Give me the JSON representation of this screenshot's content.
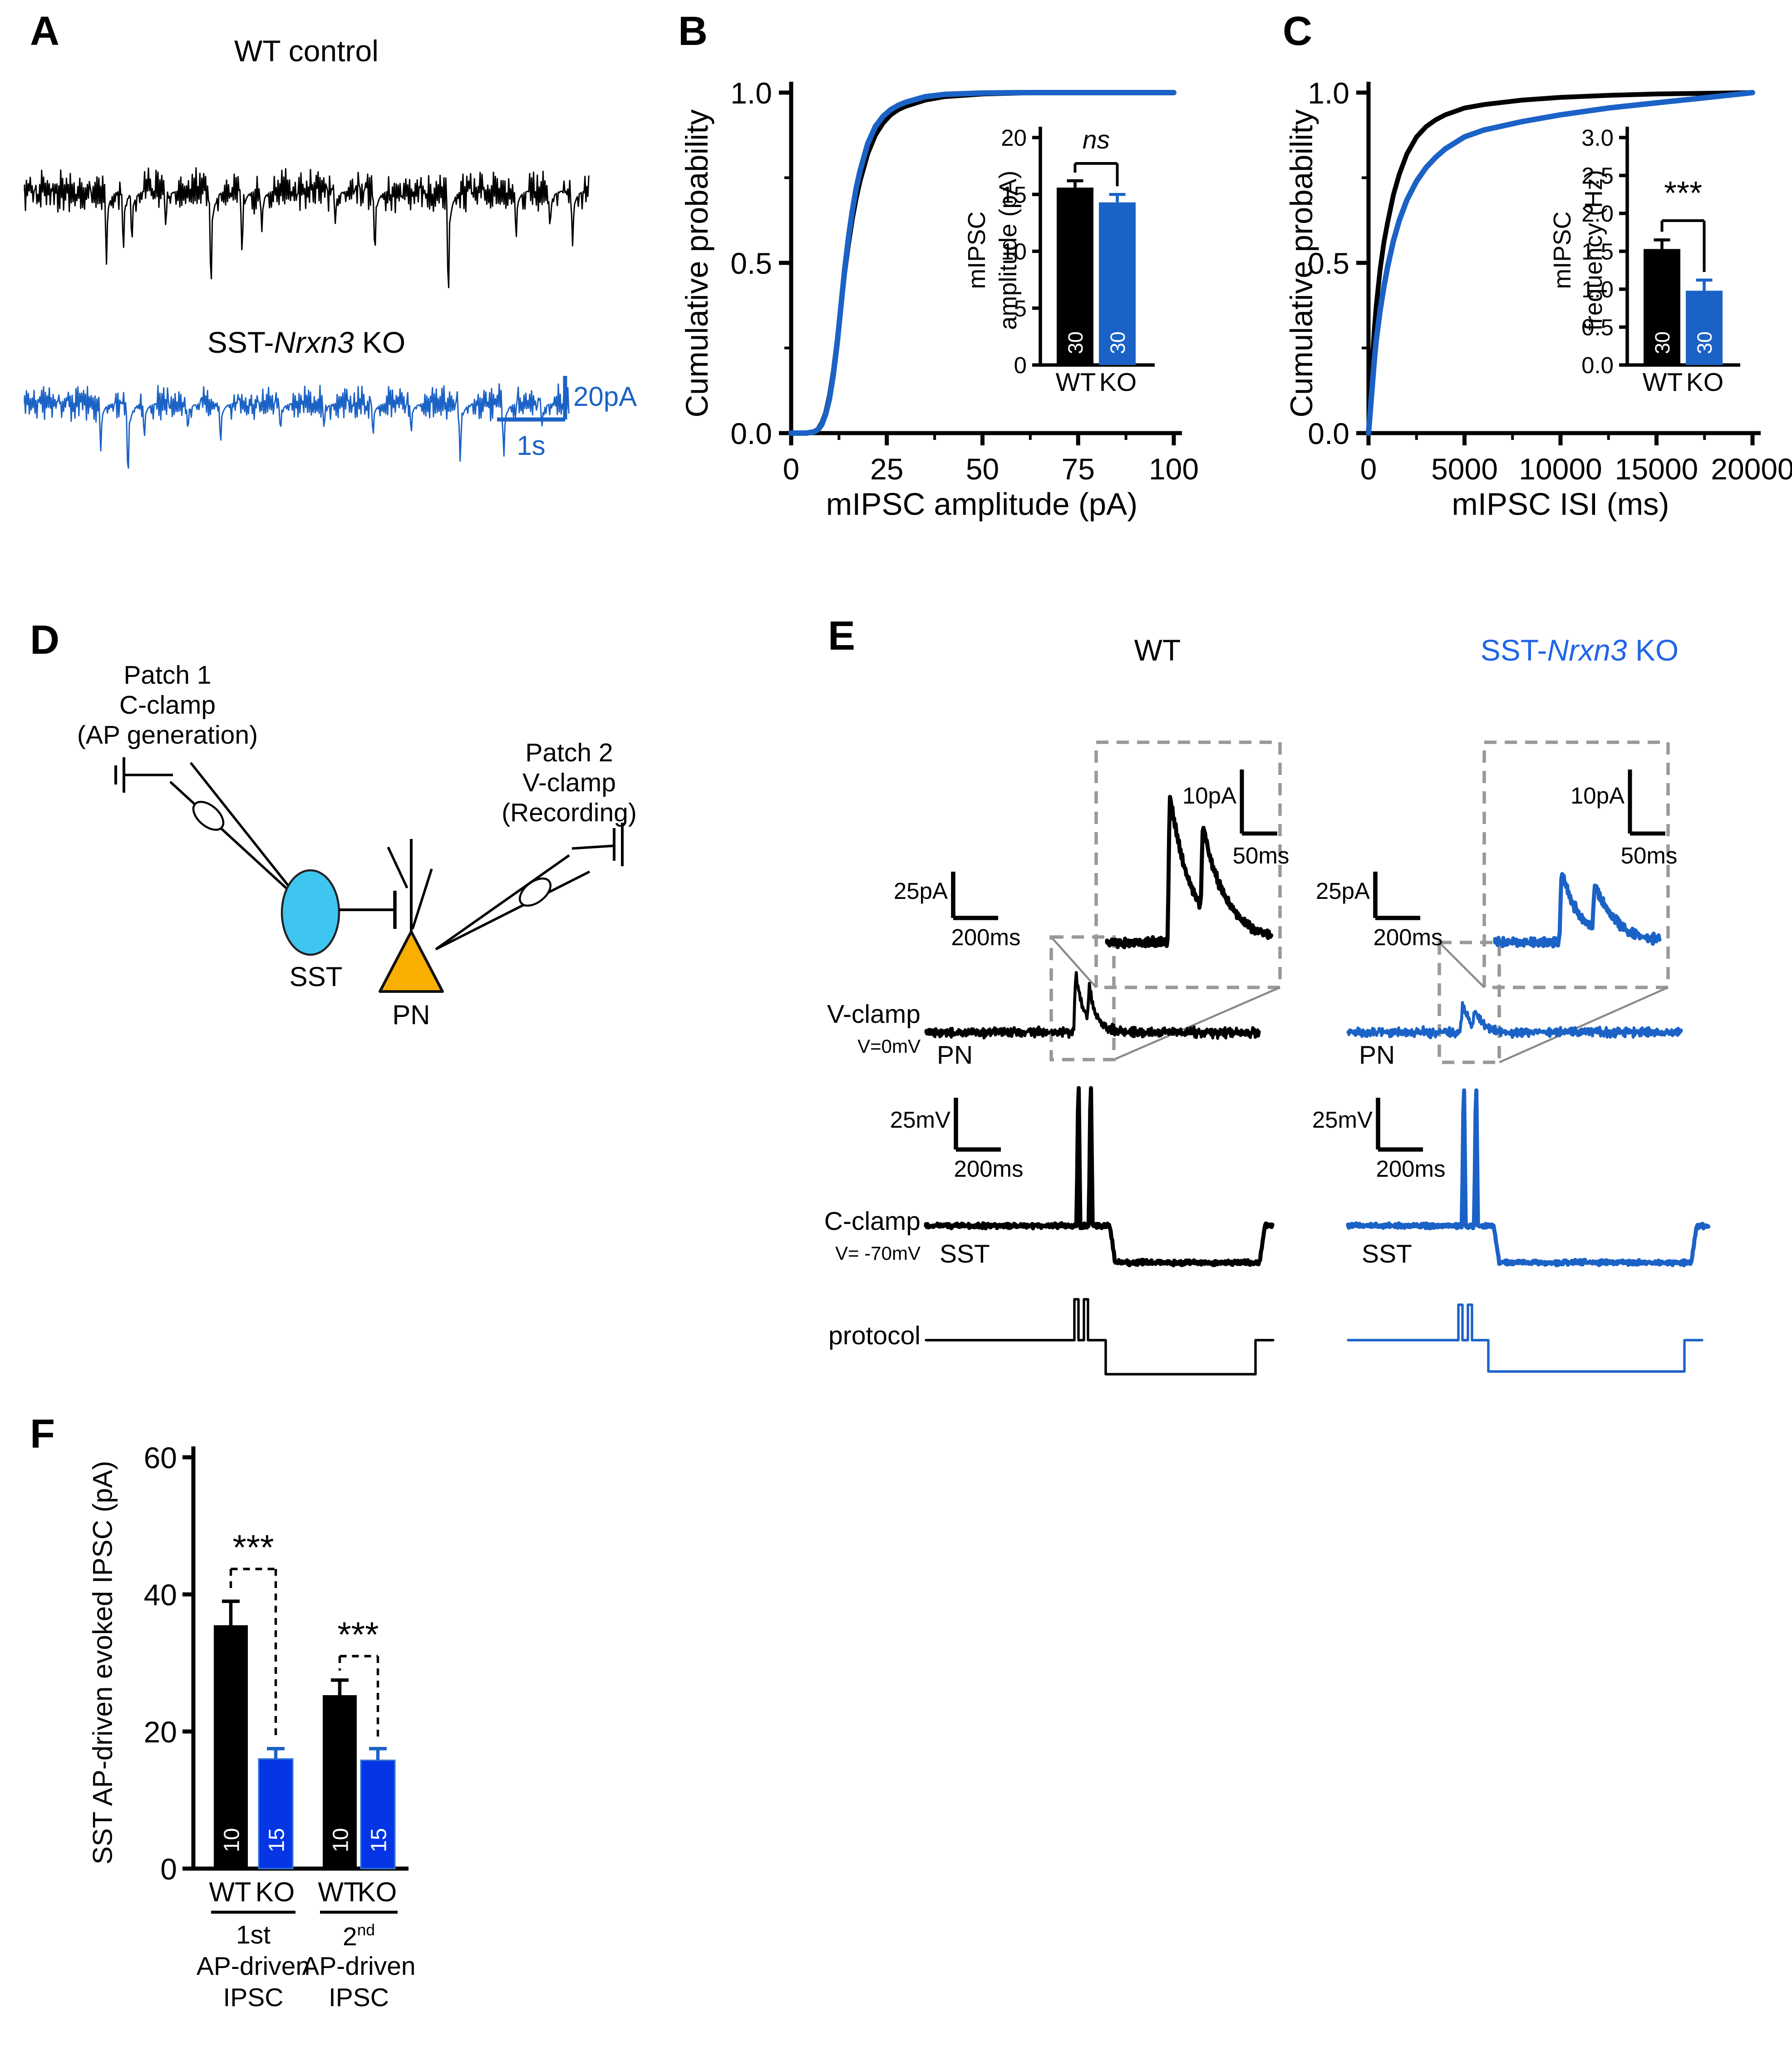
{
  "colors": {
    "black": "#000000",
    "trace_blue": "#1B62C6",
    "bar_blue": "#0535E5",
    "title_blue": "#2064E8",
    "sst_fill": "#3EC6F0",
    "pn_fill": "#F9AF00",
    "gray": "#8A8A8A",
    "dash_gray": "#999999",
    "white": "#FFFFFF"
  },
  "panelA": {
    "label": "A",
    "wt_title": "WT control",
    "ko_title": {
      "pre": "SST-",
      "italic": "Nrxn3",
      "post": " KO"
    },
    "scale_v": "20pA",
    "scale_h": "1s"
  },
  "panelB": {
    "label": "B",
    "ylabel": "Cumulative probability",
    "xlabel": "mIPSC amplitude (pA)",
    "inset": {
      "ylabel_line1": "mIPSC",
      "ylabel_line2": "amplitude (pA)"
    }
  },
  "panelC": {
    "label": "C",
    "ylabel": "Cumulative probability",
    "xlabel": "mIPSC ISI (ms)",
    "inset": {
      "ylabel_line1": "mIPSC",
      "ylabel_line2": "frequency (Hz)"
    }
  },
  "panelD": {
    "label": "D",
    "patch1_line1": "Patch 1",
    "patch1_line2": "C-clamp",
    "patch1_line3": "(AP generation)",
    "patch2_line1": "Patch 2",
    "patch2_line2": "V-clamp",
    "patch2_line3": "(Recording)",
    "sst": "SST",
    "pn": "PN"
  },
  "panelE": {
    "label": "E",
    "wt_title": "WT",
    "ko_title": {
      "pre": "SST-",
      "italic": "Nrxn3",
      "post": " KO"
    },
    "inset_scale_v": "10pA",
    "inset_scale_h": "50ms",
    "pa_scale_v": "25pA",
    "pa_scale_h": "200ms",
    "mv_scale_v": "25mV",
    "mv_scale_h": "200ms",
    "vclamp_label": "V-clamp",
    "vclamp_sub": "V=0mV",
    "pn_label": "PN",
    "cclamp_label": "C-clamp",
    "cclamp_sub": "V= -70mV",
    "sst_label": "SST",
    "protocol_label": "protocol"
  },
  "panelF": {
    "label": "F",
    "ylabel": "SST AP-driven evoked IPSC (pA)",
    "group1_line1": "1st",
    "group1_line2": "AP-driven",
    "group1_line3": "IPSC",
    "group2_num": "2",
    "group2_sup": "nd",
    "group2_line2": "AP-driven",
    "group2_line3": "IPSC"
  },
  "chart_data": [
    {
      "id": "B_cumulative",
      "type": "line",
      "title": "",
      "xlabel": "mIPSC amplitude (pA)",
      "ylabel": "Cumulative probability",
      "xlim": [
        0,
        100
      ],
      "ylim": [
        0,
        1
      ],
      "xticks": [
        0,
        25,
        50,
        75,
        100
      ],
      "xminor": [
        12.5,
        37.5,
        62.5,
        87.5
      ],
      "yticks": [
        0,
        0.5,
        1
      ],
      "yminor": [
        0.25,
        0.75
      ],
      "series": [
        {
          "name": "WT",
          "color": "black",
          "x": [
            0,
            4,
            6,
            7,
            8,
            9,
            10,
            11,
            12,
            13,
            14,
            15,
            16,
            17,
            18,
            20,
            22,
            24,
            26,
            28,
            30,
            35,
            40,
            50,
            60,
            80,
            100
          ],
          "y": [
            0,
            0,
            0.005,
            0.012,
            0.03,
            0.06,
            0.11,
            0.18,
            0.27,
            0.37,
            0.47,
            0.555,
            0.63,
            0.69,
            0.74,
            0.82,
            0.875,
            0.91,
            0.935,
            0.95,
            0.96,
            0.978,
            0.988,
            0.996,
            0.999,
            1,
            1
          ]
        },
        {
          "name": "SST-Nrxn3 KO",
          "color": "trace_blue",
          "x": [
            0,
            4,
            6,
            7,
            8,
            9,
            10,
            11,
            12,
            13,
            14,
            15,
            16,
            17,
            18,
            20,
            22,
            24,
            26,
            28,
            30,
            35,
            40,
            50,
            60,
            80,
            100
          ],
          "y": [
            0,
            0,
            0.004,
            0.01,
            0.025,
            0.055,
            0.1,
            0.17,
            0.26,
            0.37,
            0.48,
            0.575,
            0.655,
            0.72,
            0.77,
            0.85,
            0.9,
            0.93,
            0.95,
            0.963,
            0.972,
            0.988,
            0.995,
            0.999,
            1,
            1,
            1
          ]
        }
      ]
    },
    {
      "id": "B_inset",
      "type": "bar",
      "ylabel": "mIPSC amplitude (pA)",
      "ylim": [
        0,
        20
      ],
      "yticks": [
        0,
        5,
        10,
        15,
        20
      ],
      "categories": [
        "WT",
        "KO"
      ],
      "values": [
        15.6,
        14.3
      ],
      "errors": [
        0.6,
        0.7
      ],
      "n": [
        "30",
        "30"
      ],
      "sig": "ns"
    },
    {
      "id": "C_cumulative",
      "type": "line",
      "title": "",
      "xlabel": "mIPSC ISI (ms)",
      "ylabel": "Cumulative probability",
      "xlim": [
        0,
        20000
      ],
      "ylim": [
        0,
        1
      ],
      "xticks": [
        0,
        5000,
        10000,
        15000,
        20000
      ],
      "xminor": [
        2500,
        7500,
        12500,
        17500
      ],
      "yticks": [
        0,
        0.5,
        1
      ],
      "yminor": [
        0.25,
        0.75
      ],
      "series": [
        {
          "name": "WT",
          "color": "black",
          "x": [
            0,
            100,
            200,
            300,
            400,
            600,
            800,
            1000,
            1300,
            1600,
            2000,
            2500,
            3000,
            3500,
            4000,
            5000,
            6000,
            8000,
            10000,
            12500,
            15000,
            17500,
            20000
          ],
          "y": [
            0,
            0.1,
            0.21,
            0.3,
            0.37,
            0.48,
            0.56,
            0.62,
            0.7,
            0.76,
            0.82,
            0.87,
            0.9,
            0.92,
            0.935,
            0.955,
            0.965,
            0.978,
            0.986,
            0.992,
            0.996,
            0.998,
            1
          ]
        },
        {
          "name": "SST-Nrxn3 KO",
          "color": "trace_blue",
          "x": [
            0,
            100,
            200,
            300,
            400,
            600,
            800,
            1000,
            1300,
            1600,
            2000,
            2500,
            3000,
            3500,
            4000,
            5000,
            6000,
            8000,
            10000,
            12500,
            15000,
            17500,
            20000
          ],
          "y": [
            0,
            0.07,
            0.14,
            0.21,
            0.27,
            0.36,
            0.43,
            0.49,
            0.565,
            0.625,
            0.685,
            0.74,
            0.78,
            0.81,
            0.835,
            0.87,
            0.89,
            0.915,
            0.935,
            0.955,
            0.97,
            0.985,
            1
          ]
        }
      ]
    },
    {
      "id": "C_inset",
      "type": "bar",
      "ylabel": "mIPSC frequency (Hz)",
      "ylim": [
        0,
        3
      ],
      "yticks": [
        0,
        0.5,
        1,
        1.5,
        2,
        2.5,
        3
      ],
      "categories": [
        "WT",
        "KO"
      ],
      "values": [
        1.53,
        0.98
      ],
      "errors": [
        0.12,
        0.14
      ],
      "n": [
        "30",
        "30"
      ],
      "sig": "***"
    },
    {
      "id": "F_bars",
      "type": "bar",
      "ylabel": "SST AP-driven evoked IPSC (pA)",
      "ylim": [
        0,
        60
      ],
      "yticks": [
        0,
        20,
        40,
        60
      ],
      "groups": [
        "1st AP-driven IPSC",
        "2nd AP-driven IPSC"
      ],
      "categories": [
        "WT",
        "KO",
        "WT",
        "KO"
      ],
      "values": [
        35.5,
        16,
        25.3,
        15.8
      ],
      "errors": [
        3.5,
        1.5,
        2.2,
        1.7
      ],
      "n": [
        "10",
        "15",
        "10",
        "15"
      ],
      "sig": [
        "***",
        "***"
      ]
    }
  ],
  "traces": {
    "A_wt": {
      "spikes": [
        {
          "f": 0.145,
          "d": 55
        },
        {
          "f": 0.175,
          "d": 48
        },
        {
          "f": 0.19,
          "d": 42
        },
        {
          "f": 0.25,
          "d": 28
        },
        {
          "f": 0.33,
          "d": 80
        },
        {
          "f": 0.385,
          "d": 50
        },
        {
          "f": 0.42,
          "d": 30
        },
        {
          "f": 0.55,
          "d": 25
        },
        {
          "f": 0.62,
          "d": 52
        },
        {
          "f": 0.75,
          "d": 88
        },
        {
          "f": 0.87,
          "d": 38
        },
        {
          "f": 0.93,
          "d": 30
        },
        {
          "f": 0.97,
          "d": 42
        }
      ]
    },
    "A_ko": {
      "spikes": [
        {
          "f": 0.14,
          "d": 35
        },
        {
          "f": 0.19,
          "d": 62
        },
        {
          "f": 0.22,
          "d": 28
        },
        {
          "f": 0.3,
          "d": 22
        },
        {
          "f": 0.36,
          "d": 32
        },
        {
          "f": 0.47,
          "d": 22
        },
        {
          "f": 0.55,
          "d": 20
        },
        {
          "f": 0.64,
          "d": 26
        },
        {
          "f": 0.71,
          "d": 24
        },
        {
          "f": 0.8,
          "d": 46
        },
        {
          "f": 0.88,
          "d": 42
        },
        {
          "f": 0.95,
          "d": 18
        }
      ]
    },
    "E_wt": {
      "inset_peaks": [
        {
          "f": 0.4,
          "h": 110,
          "tau": 16
        },
        {
          "f": 0.58,
          "h": 62,
          "tau": 18
        }
      ],
      "vclamp_peaks": [
        {
          "x": 790,
          "h": 44,
          "tau": 6
        },
        {
          "x": 800,
          "h": 25,
          "tau": 5.5
        }
      ],
      "ap_x": [
        792,
        801
      ],
      "step": [
        815,
        925,
        27
      ],
      "pulse_x": [
        789,
        796
      ],
      "pulse_h": 30,
      "pstep": [
        812,
        922,
        25
      ]
    },
    "E_ko": {
      "inset_peaks": [
        {
          "f": 0.42,
          "h": 52,
          "tau": 14
        },
        {
          "f": 0.6,
          "h": 34,
          "tau": 16
        }
      ],
      "vclamp_peaks": [
        {
          "x": 1074,
          "h": 20,
          "tau": 6
        },
        {
          "x": 1083,
          "h": 13,
          "tau": 5.5
        }
      ],
      "ap_x": [
        1075,
        1084
      ],
      "step": [
        1097,
        1242,
        27
      ],
      "pulse_x": [
        1071,
        1078
      ],
      "pulse_h": 26,
      "pstep": [
        1093,
        1237,
        23
      ]
    }
  }
}
